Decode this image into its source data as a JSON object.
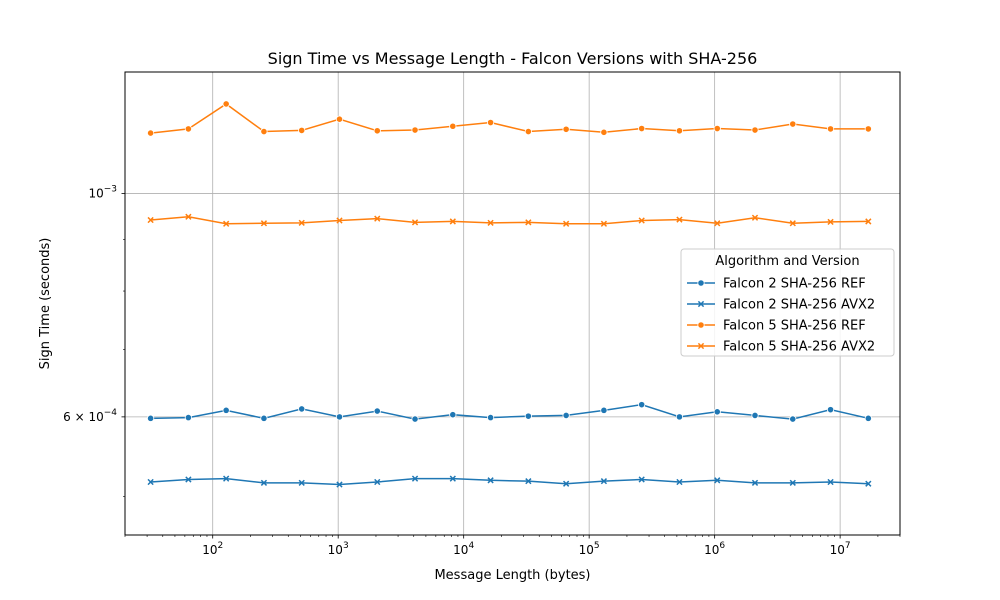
{
  "chart_data": {
    "type": "line",
    "title": "Sign Time vs Message Length - Falcon Versions with SHA-256",
    "xlabel": "Message Length (bytes)",
    "ylabel": "Sign Time (seconds)",
    "xscale": "log",
    "yscale": "log",
    "xlim": [
      20,
      30000000
    ],
    "ylim": [
      0.000458,
      0.00132
    ],
    "grid": true,
    "legend": {
      "title": "Algorithm and Version",
      "placement": "center-right"
    },
    "x_ticks": [
      {
        "value": 100,
        "base": "10",
        "exp": "2"
      },
      {
        "value": 1000,
        "base": "10",
        "exp": "3"
      },
      {
        "value": 10000,
        "base": "10",
        "exp": "4"
      },
      {
        "value": 100000,
        "base": "10",
        "exp": "5"
      },
      {
        "value": 1000000,
        "base": "10",
        "exp": "6"
      },
      {
        "value": 10000000,
        "base": "10",
        "exp": "7"
      }
    ],
    "y_ticks": [
      {
        "value": 0.001,
        "mantissa": "",
        "base": "10",
        "exp": "−3"
      },
      {
        "value": 0.0006,
        "mantissa": "6 × ",
        "base": "10",
        "exp": "−4"
      }
    ],
    "y_minor_ticks": [
      0.0005,
      0.0007,
      0.0008,
      0.0009
    ],
    "x": [
      32,
      64,
      128,
      256,
      512,
      1024,
      2048,
      4096,
      8192,
      16384,
      32768,
      65536,
      131072,
      262144,
      524288,
      1048576,
      2097152,
      4194304,
      8388608,
      16777216
    ],
    "series": [
      {
        "name": "Falcon 2 SHA-256 REF",
        "color": "#1f77b4",
        "marker": "circle",
        "values": [
          0.000598,
          0.000599,
          0.000609,
          0.000598,
          0.000611,
          0.0006,
          0.000608,
          0.000597,
          0.000603,
          0.000599,
          0.000601,
          0.000602,
          0.000609,
          0.000617,
          0.0006,
          0.000607,
          0.000602,
          0.000597,
          0.00061,
          0.000598
        ]
      },
      {
        "name": "Falcon 2 SHA-256 AVX2",
        "color": "#1f77b4",
        "marker": "x",
        "values": [
          0.000517,
          0.00052,
          0.000521,
          0.000516,
          0.000516,
          0.000514,
          0.000517,
          0.000521,
          0.000521,
          0.000519,
          0.000518,
          0.000515,
          0.000518,
          0.00052,
          0.000517,
          0.000519,
          0.000516,
          0.000516,
          0.000517,
          0.000515
        ]
      },
      {
        "name": "Falcon 5 SHA-256 REF",
        "color": "#ff7f0e",
        "marker": "circle",
        "values": [
          0.001148,
          0.001159,
          0.001227,
          0.001152,
          0.001155,
          0.001185,
          0.001154,
          0.001156,
          0.001166,
          0.001176,
          0.001152,
          0.001158,
          0.00115,
          0.00116,
          0.001154,
          0.00116,
          0.001156,
          0.001172,
          0.001159,
          0.001159
        ]
      },
      {
        "name": "Falcon 5 SHA-256 AVX2",
        "color": "#ff7f0e",
        "marker": "x",
        "values": [
          0.000941,
          0.000948,
          0.000933,
          0.000934,
          0.000935,
          0.00094,
          0.000944,
          0.000936,
          0.000938,
          0.000935,
          0.000936,
          0.000933,
          0.000933,
          0.00094,
          0.000942,
          0.000934,
          0.000946,
          0.000934,
          0.000937,
          0.000938
        ]
      }
    ]
  }
}
